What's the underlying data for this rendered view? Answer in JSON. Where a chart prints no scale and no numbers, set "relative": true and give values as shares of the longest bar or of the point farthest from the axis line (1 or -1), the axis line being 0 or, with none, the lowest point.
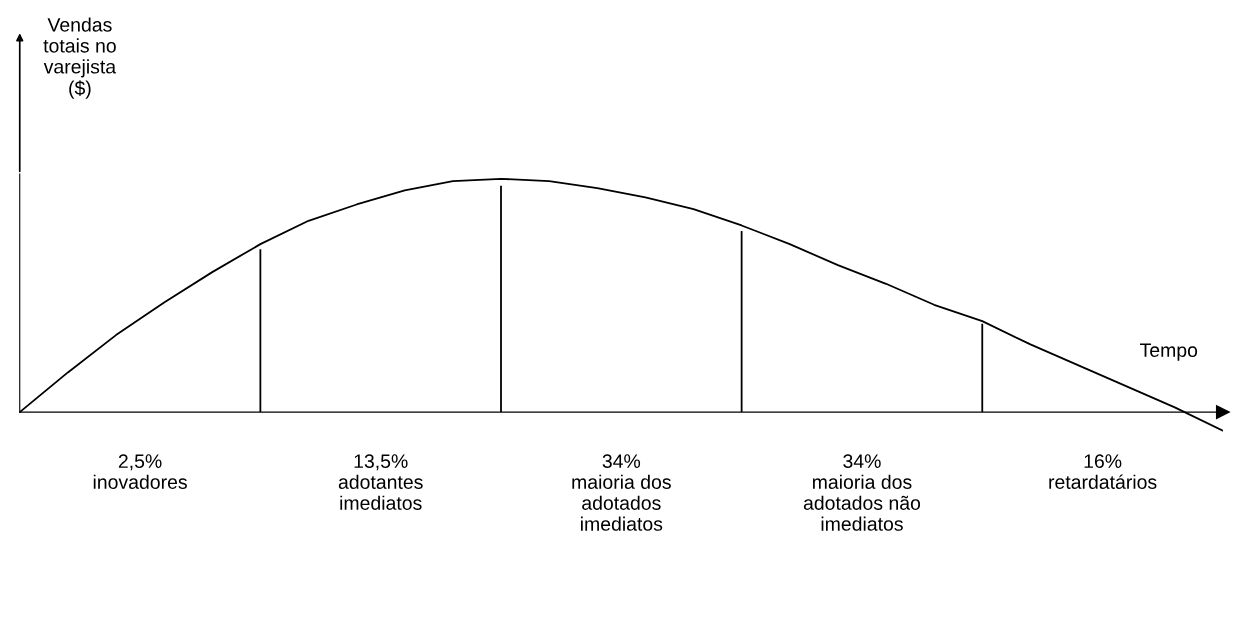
{
  "chart_data": {
    "type": "line",
    "relative": true,
    "ylabel": "Vendas\ntotais no\nvarejista\n($)",
    "xlabel": "Tempo",
    "categories": [
      null,
      null,
      null,
      null,
      null,
      null,
      null,
      null,
      null,
      null,
      null,
      null,
      null,
      null,
      null,
      null,
      null,
      null,
      null,
      null,
      null,
      null,
      null,
      null,
      null,
      null
    ],
    "series": [
      {
        "color": "#000000",
        "values": [
          0,
          0.17,
          0.33,
          0.47,
          0.6,
          0.72,
          0.82,
          0.89,
          0.95,
          0.99,
          1,
          0.99,
          0.96,
          0.92,
          0.87,
          0.8,
          0.72,
          0.63,
          0.55,
          0.46,
          0.39,
          0.29,
          0.2,
          0.11,
          0.02,
          -0.08
        ]
      }
    ],
    "annotations": [
      "2,5%\ninovadores",
      "13,5%\nadotantes\nimediatos",
      "34%\nmaioria dos\nadotados\nimediatos",
      "34%\nmaioria dos\nadotados não\nimediatos",
      "16%\nretardatários"
    ],
    "legend": false,
    "tick_labels": false
  }
}
